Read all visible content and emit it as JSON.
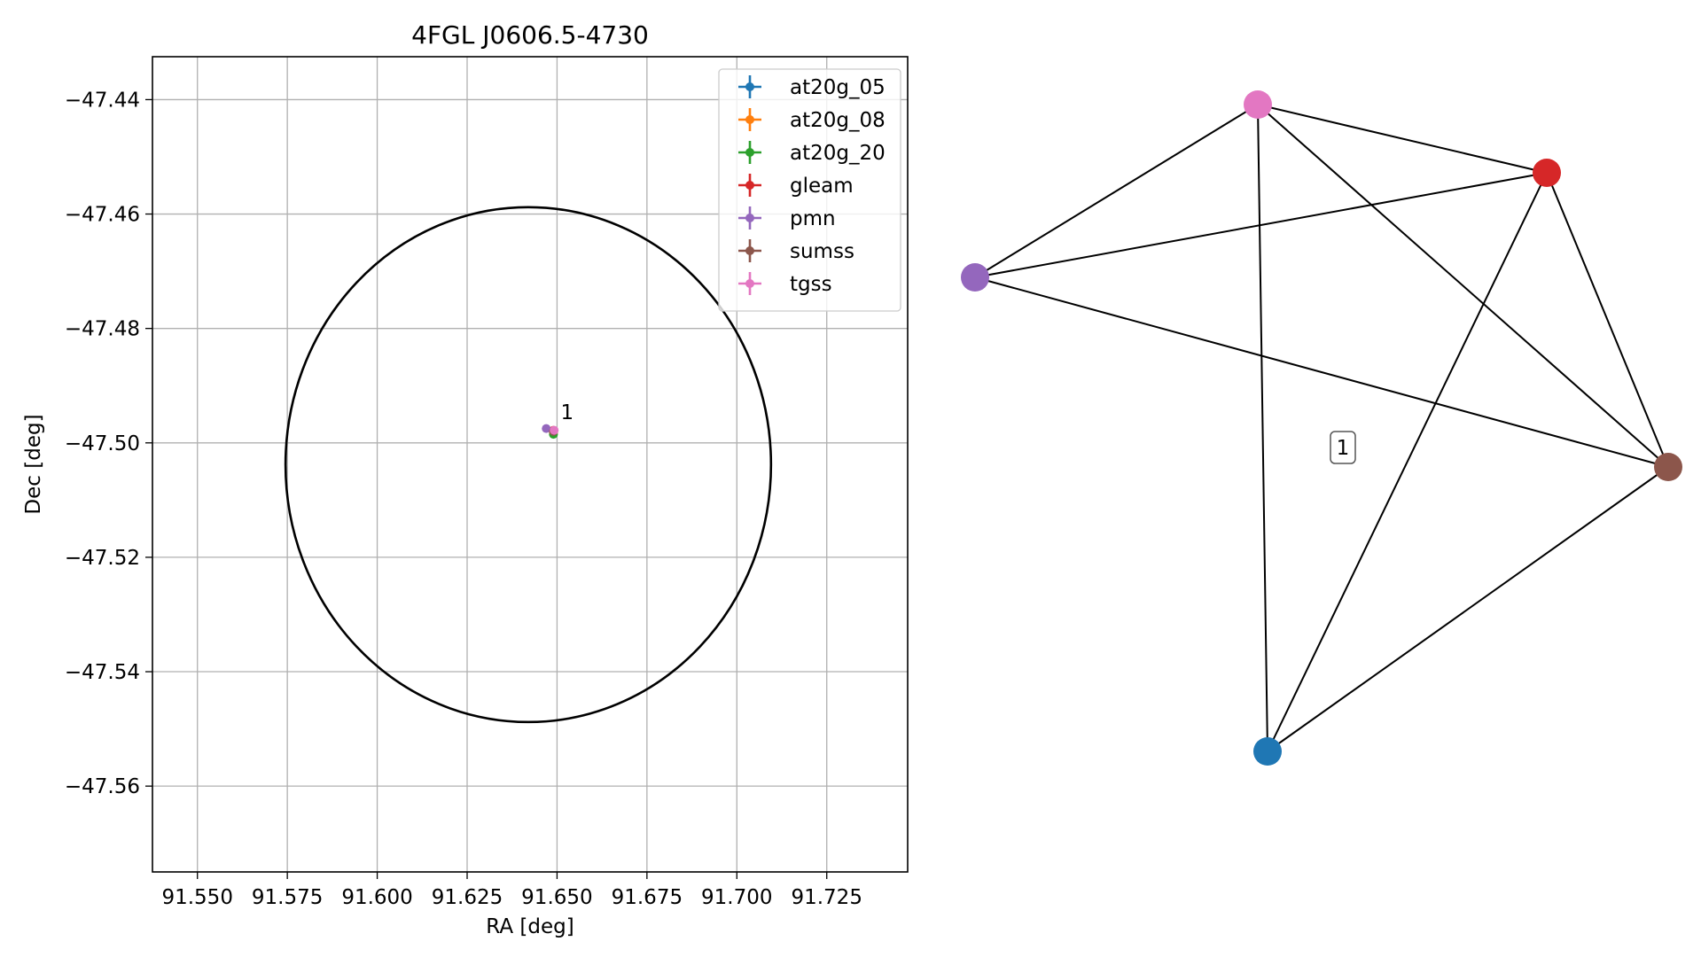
{
  "chart_data": [
    {
      "type": "scatter",
      "title": "4FGL J0606.5-4730",
      "xlabel": "RA [deg]",
      "ylabel": "Dec [deg]",
      "xlim": [
        91.5375,
        91.7475
      ],
      "ylim": [
        -47.575,
        -47.4325
      ],
      "xticks": [
        91.55,
        91.575,
        91.6,
        91.625,
        91.65,
        91.675,
        91.7,
        91.725
      ],
      "xtick_labels": [
        "91.550",
        "91.575",
        "91.600",
        "91.625",
        "91.650",
        "91.675",
        "91.700",
        "91.725"
      ],
      "yticks": [
        -47.44,
        -47.46,
        -47.48,
        -47.5,
        -47.52,
        -47.54,
        -47.56
      ],
      "ytick_labels": [
        "−47.44",
        "−47.46",
        "−47.48",
        "−47.50",
        "−47.52",
        "−47.54",
        "−47.56"
      ],
      "grid": true,
      "legend_position": "top-right",
      "ellipse": {
        "center": [
          91.642,
          -47.5038
        ],
        "radius_ra": 0.0675,
        "radius_dec": 0.045,
        "color": "#000000"
      },
      "series": [
        {
          "name": "at20g_05",
          "color": "#1f77b4",
          "x": [
            91.649
          ],
          "y": [
            -47.498
          ]
        },
        {
          "name": "at20g_08",
          "color": "#ff7f0e",
          "x": [
            91.649
          ],
          "y": [
            -47.4982
          ]
        },
        {
          "name": "at20g_20",
          "color": "#2ca02c",
          "x": [
            91.649
          ],
          "y": [
            -47.4985
          ]
        },
        {
          "name": "gleam",
          "color": "#d62728",
          "x": [
            91.649
          ],
          "y": [
            -47.4978
          ]
        },
        {
          "name": "pmn",
          "color": "#9467bd",
          "x": [
            91.647
          ],
          "y": [
            -47.4975
          ]
        },
        {
          "name": "sumss",
          "color": "#8c564b",
          "x": [
            91.649
          ],
          "y": [
            -47.498
          ]
        },
        {
          "name": "tgss",
          "color": "#e377c2",
          "x": [
            91.6492
          ],
          "y": [
            -47.4978
          ]
        }
      ],
      "annotations": [
        {
          "text": "1",
          "x": 91.6505,
          "y": -47.4965
        }
      ]
    },
    {
      "type": "network",
      "label": "1",
      "nodes": [
        {
          "id": "tgss",
          "color": "#e377c2"
        },
        {
          "id": "gleam",
          "color": "#d62728"
        },
        {
          "id": "pmn",
          "color": "#9467bd"
        },
        {
          "id": "sumss",
          "color": "#8c564b"
        },
        {
          "id": "at20g",
          "color": "#1f77b4"
        }
      ],
      "edges": [
        [
          "pmn",
          "tgss"
        ],
        [
          "pmn",
          "gleam"
        ],
        [
          "pmn",
          "sumss"
        ],
        [
          "tgss",
          "gleam"
        ],
        [
          "tgss",
          "sumss"
        ],
        [
          "tgss",
          "at20g"
        ],
        [
          "gleam",
          "sumss"
        ],
        [
          "gleam",
          "at20g"
        ],
        [
          "sumss",
          "at20g"
        ]
      ]
    }
  ]
}
